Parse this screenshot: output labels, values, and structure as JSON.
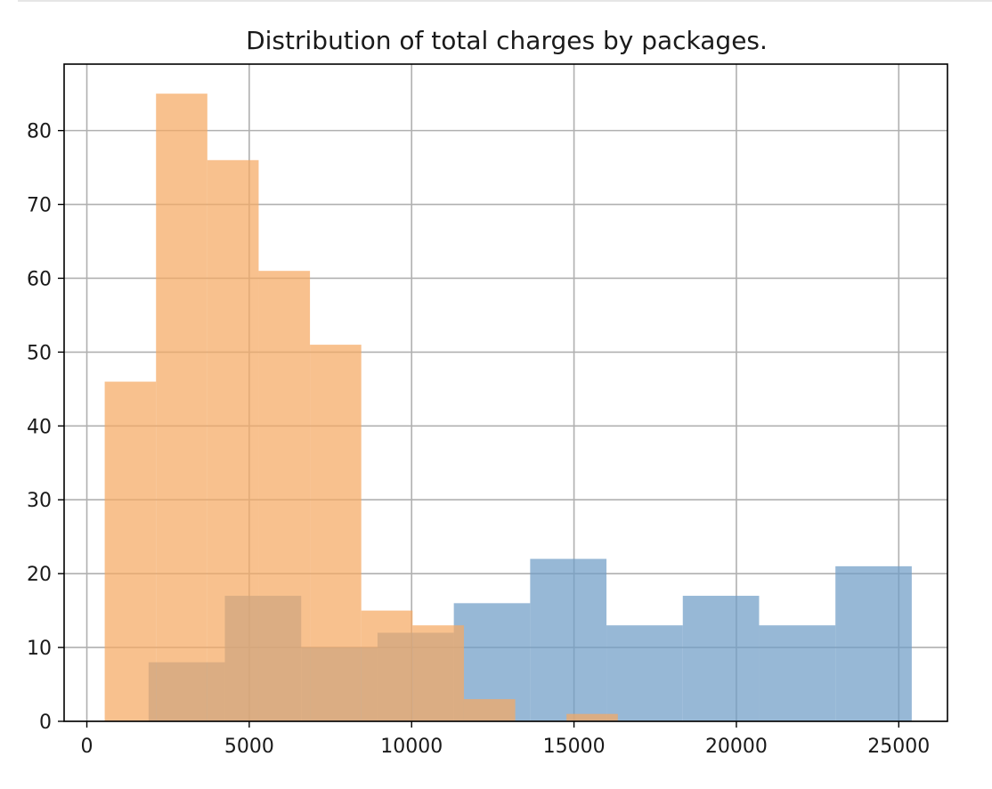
{
  "chart_data": {
    "type": "histogram",
    "title": "Distribution of total charges by packages.",
    "xlabel": "",
    "ylabel": "",
    "xlim": [
      -700,
      26500
    ],
    "ylim": [
      0,
      89
    ],
    "x_ticks": [
      "0",
      "5000",
      "10000",
      "15000",
      "20000",
      "25000"
    ],
    "y_ticks": [
      "0",
      "10",
      "20",
      "30",
      "40",
      "50",
      "60",
      "70",
      "80"
    ],
    "grid": true,
    "legend": "none",
    "series": [
      {
        "color": "#6f9cc6",
        "opacity": 0.72,
        "bins": [
          {
            "x0": 1900,
            "x1": 4250,
            "count": 8
          },
          {
            "x0": 4250,
            "x1": 6600,
            "count": 17
          },
          {
            "x0": 6600,
            "x1": 8950,
            "count": 10
          },
          {
            "x0": 8950,
            "x1": 11300,
            "count": 12
          },
          {
            "x0": 11300,
            "x1": 13650,
            "count": 16
          },
          {
            "x0": 13650,
            "x1": 16000,
            "count": 22
          },
          {
            "x0": 16000,
            "x1": 18350,
            "count": 13
          },
          {
            "x0": 18350,
            "x1": 20700,
            "count": 17
          },
          {
            "x0": 20700,
            "x1": 23050,
            "count": 13
          },
          {
            "x0": 23050,
            "x1": 25400,
            "count": 21
          }
        ]
      },
      {
        "color": "#f5a962",
        "opacity": 0.72,
        "bins": [
          {
            "x0": 550,
            "x1": 2130,
            "count": 46
          },
          {
            "x0": 2130,
            "x1": 3710,
            "count": 85
          },
          {
            "x0": 3710,
            "x1": 5290,
            "count": 76
          },
          {
            "x0": 5290,
            "x1": 6870,
            "count": 61
          },
          {
            "x0": 6870,
            "x1": 8450,
            "count": 51
          },
          {
            "x0": 8450,
            "x1": 10030,
            "count": 15
          },
          {
            "x0": 10030,
            "x1": 11610,
            "count": 13
          },
          {
            "x0": 11610,
            "x1": 13190,
            "count": 3
          },
          {
            "x0": 13190,
            "x1": 14770,
            "count": 0
          },
          {
            "x0": 14770,
            "x1": 16350,
            "count": 1
          }
        ]
      }
    ]
  }
}
